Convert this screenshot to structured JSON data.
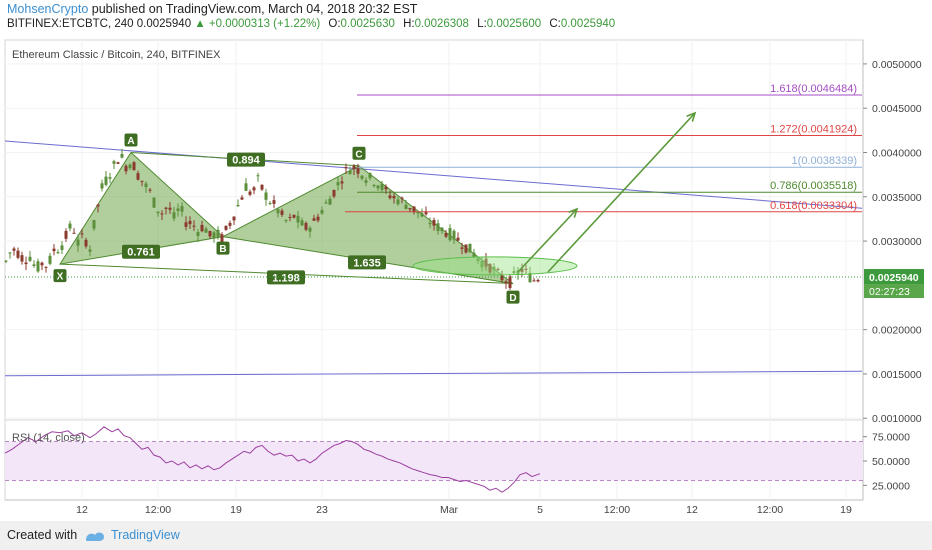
{
  "header": {
    "author": "MohsenCrypto",
    "published": "published on TradingView.com, March 04, 2018 20:32 EST",
    "symbol": "BITFINEX:ETCBTC, 240",
    "last": "0.0025940",
    "change": "+0.0000313 (+1.22%)",
    "open_label": "O:",
    "open": "0.0025630",
    "high_label": "H:",
    "high": "0.0026308",
    "low_label": "L:",
    "low": "0.0025600",
    "close_label": "C:",
    "close": "0.0025940"
  },
  "footer": {
    "created_with": "Created with",
    "brand": "TradingView"
  },
  "colors": {
    "candle_up": "#5b8f3b",
    "candle_down": "#8b3a2e",
    "pattern_fill": "#6fa84a",
    "trendline": "#6b6bd0",
    "rsi_line": "#9c3fa0",
    "rsi_band": "#f3e6f8",
    "fib_1618": "#a64dc4",
    "fib_1272": "#e04545",
    "fib_1": "#8fb0d9",
    "fib_0786": "#4d8a2e",
    "fib_0618": "#e04545",
    "last_price": "#3c9a3c"
  },
  "chart_data": [
    {
      "type": "candlestick",
      "title": "Ethereum Classic / Bitcoin, 240, BITFINEX",
      "x_ticks": [
        "12",
        "12:00",
        "19",
        "23",
        "Mar",
        "5",
        "12:00",
        "12",
        "12:00",
        "19"
      ],
      "y_ticks": [
        "0.0050000",
        "0.0045000",
        "0.0040000",
        "0.0035000",
        "0.0030000",
        "0.0020000",
        "0.0015000",
        "0.0010000"
      ],
      "ylim": [
        0.00098,
        0.00527
      ],
      "last_price_label": "0.0025940",
      "countdown": "02:27:23",
      "close_path": [
        [
          0,
          0.00248
        ],
        [
          6,
          0.00277
        ],
        [
          12,
          0.00292
        ],
        [
          18,
          0.00287
        ],
        [
          24,
          0.00279
        ],
        [
          30,
          0.00283
        ],
        [
          36,
          0.00268
        ],
        [
          42,
          0.00275
        ],
        [
          48,
          0.00272
        ],
        [
          54,
          0.0029
        ],
        [
          60,
          0.00292
        ],
        [
          66,
          0.00305
        ],
        [
          72,
          0.0032
        ],
        [
          78,
          0.00298
        ],
        [
          84,
          0.00305
        ],
        [
          90,
          0.00292
        ],
        [
          96,
          0.0033
        ],
        [
          102,
          0.0036
        ],
        [
          108,
          0.00373
        ],
        [
          114,
          0.00385
        ],
        [
          120,
          0.00398
        ],
        [
          126,
          0.00385
        ],
        [
          132,
          0.0039
        ],
        [
          138,
          0.00375
        ],
        [
          144,
          0.00365
        ],
        [
          150,
          0.00355
        ],
        [
          156,
          0.00338
        ],
        [
          162,
          0.00332
        ],
        [
          168,
          0.0034
        ],
        [
          174,
          0.00326
        ],
        [
          180,
          0.00338
        ],
        [
          186,
          0.00322
        ],
        [
          192,
          0.0032
        ],
        [
          198,
          0.00312
        ],
        [
          204,
          0.00318
        ],
        [
          210,
          0.00305
        ],
        [
          216,
          0.00309
        ],
        [
          222,
          0.00303
        ],
        [
          228,
          0.00316
        ],
        [
          234,
          0.0033
        ],
        [
          240,
          0.00345
        ],
        [
          246,
          0.00362
        ],
        [
          252,
          0.00352
        ],
        [
          258,
          0.00368
        ],
        [
          264,
          0.00355
        ],
        [
          270,
          0.00345
        ],
        [
          276,
          0.00338
        ],
        [
          282,
          0.00328
        ],
        [
          288,
          0.0032
        ],
        [
          294,
          0.00328
        ],
        [
          300,
          0.0032
        ],
        [
          306,
          0.00315
        ],
        [
          312,
          0.00318
        ],
        [
          318,
          0.00328
        ],
        [
          324,
          0.00338
        ],
        [
          330,
          0.00348
        ],
        [
          336,
          0.0036
        ],
        [
          342,
          0.00372
        ],
        [
          348,
          0.00382
        ],
        [
          354,
          0.00383
        ],
        [
          360,
          0.0038
        ],
        [
          366,
          0.00372
        ],
        [
          372,
          0.0037
        ],
        [
          378,
          0.00365
        ],
        [
          384,
          0.00358
        ],
        [
          390,
          0.00352
        ],
        [
          396,
          0.00348
        ],
        [
          402,
          0.00345
        ],
        [
          408,
          0.0034
        ],
        [
          414,
          0.00336
        ],
        [
          420,
          0.0033
        ],
        [
          426,
          0.00326
        ],
        [
          432,
          0.0032
        ],
        [
          438,
          0.00316
        ],
        [
          444,
          0.00312
        ],
        [
          450,
          0.00308
        ],
        [
          456,
          0.00304
        ],
        [
          462,
          0.00298
        ],
        [
          468,
          0.00292
        ],
        [
          474,
          0.00286
        ],
        [
          480,
          0.00278
        ],
        [
          486,
          0.00274
        ],
        [
          492,
          0.0027
        ],
        [
          498,
          0.00262
        ],
        [
          504,
          0.00257
        ],
        [
          510,
          0.00254
        ],
        [
          516,
          0.00262
        ],
        [
          522,
          0.00268
        ],
        [
          528,
          0.00262
        ],
        [
          534,
          0.00256
        ],
        [
          540,
          0.00259
        ]
      ],
      "harmonic_points": [
        {
          "label": "X",
          "x": 60,
          "y": 0.00274
        },
        {
          "label": "A",
          "x": 131,
          "y": 0.004
        },
        {
          "label": "B",
          "x": 223,
          "y": 0.00305
        },
        {
          "label": "C",
          "x": 359,
          "y": 0.00385
        },
        {
          "label": "D",
          "x": 513,
          "y": 0.00252
        }
      ],
      "ratios": [
        {
          "label": "0.894",
          "x": 246,
          "y": 0.00392
        },
        {
          "label": "0.761",
          "x": 141,
          "y": 0.00288
        },
        {
          "label": "1.198",
          "x": 286,
          "y": 0.00259
        },
        {
          "label": "1.635",
          "x": 367,
          "y": 0.00276
        }
      ],
      "fib_levels": [
        {
          "label": "1.618(0.0046484)",
          "price": 0.0046484,
          "x0": 357,
          "color": "#a64dc4"
        },
        {
          "label": "1.272(0.0041924)",
          "price": 0.0041924,
          "x0": 357,
          "color": "#e04545"
        },
        {
          "label": "1(0.0038339)",
          "price": 0.0038339,
          "x0": 357,
          "color": "#8fb0d9"
        },
        {
          "label": "0.786(0.0035518)",
          "price": 0.0035518,
          "x0": 357,
          "color": "#4d8a2e"
        },
        {
          "label": "0.618(0.0033304)",
          "price": 0.0033304,
          "x0": 345,
          "color": "#e04545"
        }
      ],
      "trendlines": [
        {
          "x0": 5,
          "y0": 0.00413,
          "x1": 862,
          "y1": 0.00337
        },
        {
          "x0": 5,
          "y0": 0.00148,
          "x1": 862,
          "y1": 0.00153
        }
      ]
    },
    {
      "type": "line",
      "title": "RSI (14, close)",
      "y_ticks": [
        "75.0000",
        "50.0000",
        "25.0000"
      ],
      "ylim": [
        12,
        88
      ],
      "band": [
        30,
        70
      ],
      "values": [
        [
          5,
          58
        ],
        [
          12,
          62
        ],
        [
          20,
          68
        ],
        [
          28,
          74
        ],
        [
          36,
          70
        ],
        [
          44,
          76
        ],
        [
          52,
          80
        ],
        [
          60,
          79
        ],
        [
          68,
          81
        ],
        [
          74,
          76
        ],
        [
          82,
          79
        ],
        [
          90,
          74
        ],
        [
          96,
          78
        ],
        [
          104,
          85
        ],
        [
          112,
          80
        ],
        [
          118,
          83
        ],
        [
          124,
          76
        ],
        [
          130,
          74
        ],
        [
          136,
          68
        ],
        [
          142,
          62
        ],
        [
          148,
          64
        ],
        [
          154,
          56
        ],
        [
          160,
          54
        ],
        [
          166,
          48
        ],
        [
          172,
          50
        ],
        [
          178,
          46
        ],
        [
          184,
          49
        ],
        [
          190,
          43
        ],
        [
          196,
          46
        ],
        [
          202,
          42
        ],
        [
          208,
          45
        ],
        [
          214,
          41
        ],
        [
          220,
          43
        ],
        [
          226,
          48
        ],
        [
          232,
          52
        ],
        [
          238,
          56
        ],
        [
          244,
          60
        ],
        [
          250,
          58
        ],
        [
          256,
          64
        ],
        [
          262,
          66
        ],
        [
          268,
          60
        ],
        [
          274,
          56
        ],
        [
          280,
          58
        ],
        [
          286,
          55
        ],
        [
          292,
          56
        ],
        [
          298,
          50
        ],
        [
          304,
          52
        ],
        [
          310,
          48
        ],
        [
          316,
          52
        ],
        [
          322,
          58
        ],
        [
          328,
          62
        ],
        [
          334,
          66
        ],
        [
          340,
          68
        ],
        [
          346,
          71
        ],
        [
          352,
          70
        ],
        [
          358,
          67
        ],
        [
          364,
          62
        ],
        [
          370,
          60
        ],
        [
          376,
          57
        ],
        [
          382,
          55
        ],
        [
          388,
          52
        ],
        [
          394,
          50
        ],
        [
          400,
          48
        ],
        [
          406,
          45
        ],
        [
          412,
          42
        ],
        [
          418,
          40
        ],
        [
          424,
          38
        ],
        [
          430,
          36
        ],
        [
          436,
          35
        ],
        [
          442,
          33
        ],
        [
          448,
          33
        ],
        [
          454,
          31
        ],
        [
          460,
          29
        ],
        [
          466,
          30
        ],
        [
          472,
          28
        ],
        [
          478,
          26
        ],
        [
          484,
          24
        ],
        [
          490,
          20
        ],
        [
          496,
          22
        ],
        [
          502,
          18
        ],
        [
          508,
          22
        ],
        [
          514,
          28
        ],
        [
          520,
          36
        ],
        [
          526,
          38
        ],
        [
          532,
          34
        ],
        [
          540,
          37
        ]
      ]
    }
  ]
}
